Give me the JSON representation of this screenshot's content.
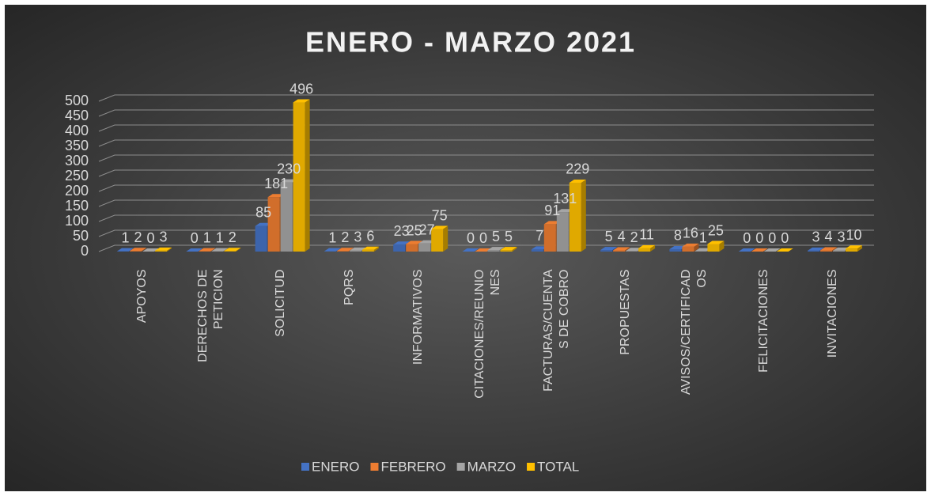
{
  "chart_data": {
    "type": "bar3d",
    "title": "ENERO - MARZO 2021",
    "categories": [
      "APOYOS",
      "DERECHOS DE PETICION",
      "SOLICITUD",
      "PQRS",
      "INFORMATIVOS",
      "CITACIONES/REUNIONES",
      "FACTURAS/CUENTAS DE COBRO",
      "PROPUESTAS",
      "AVISOS/CERTIFICADOS",
      "FELICITACIONES",
      "INVITACIONES"
    ],
    "series": [
      {
        "name": "ENERO",
        "color": "#4472c4",
        "values": [
          1,
          0,
          85,
          1,
          23,
          0,
          7,
          5,
          8,
          0,
          3
        ]
      },
      {
        "name": "FEBRERO",
        "color": "#ed7d31",
        "values": [
          2,
          1,
          181,
          2,
          25,
          0,
          91,
          4,
          16,
          0,
          4
        ]
      },
      {
        "name": "MARZO",
        "color": "#a5a5a5",
        "values": [
          0,
          1,
          230,
          3,
          27,
          5,
          131,
          2,
          1,
          0,
          3
        ]
      },
      {
        "name": "TOTAL",
        "color": "#ffc000",
        "values": [
          3,
          2,
          496,
          6,
          75,
          5,
          229,
          11,
          25,
          0,
          10
        ]
      }
    ],
    "ylim": [
      0,
      500
    ],
    "yticks": [
      0,
      50,
      100,
      150,
      200,
      250,
      300,
      350,
      400,
      450,
      500
    ],
    "grid": true,
    "legend": "bottom"
  }
}
